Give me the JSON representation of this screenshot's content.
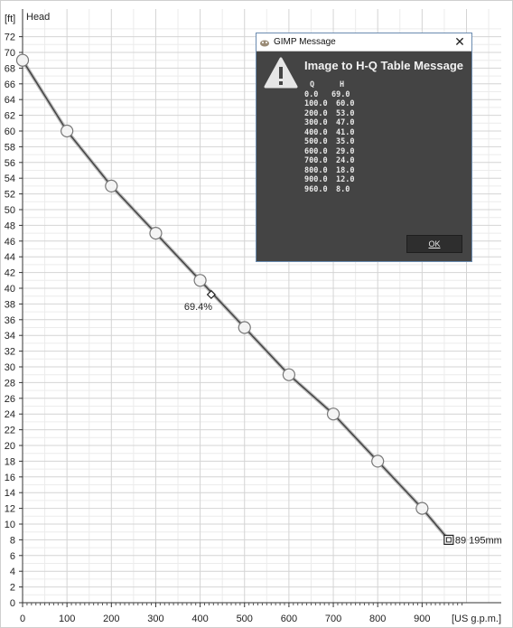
{
  "chart_data": {
    "type": "line",
    "ylabel": "Head",
    "yunit": "[ft]",
    "xunit": "[US g.p.m.]",
    "ylim": [
      0,
      74
    ],
    "xlim": [
      0,
      1000
    ],
    "y_ticks": [
      0,
      2,
      4,
      6,
      8,
      10,
      12,
      14,
      16,
      18,
      20,
      22,
      24,
      26,
      28,
      30,
      32,
      34,
      36,
      38,
      40,
      42,
      44,
      46,
      48,
      50,
      52,
      54,
      56,
      58,
      60,
      62,
      64,
      66,
      68,
      70,
      72
    ],
    "x_ticks": [
      0,
      100,
      200,
      300,
      400,
      500,
      600,
      700,
      800,
      900
    ],
    "grid": true,
    "curve_color": "#444444",
    "series": [
      {
        "x": [
          0,
          100,
          200,
          300,
          400,
          500,
          600,
          700,
          800,
          900,
          960
        ],
        "y": [
          69,
          60,
          53,
          47,
          41,
          35,
          29,
          24,
          18,
          12,
          8
        ]
      }
    ],
    "annotations": [
      {
        "text": "69.4%",
        "x": 425,
        "y": 39.2
      },
      {
        "text": "89 195mm",
        "x": 960,
        "y": 8
      }
    ]
  },
  "dialog": {
    "title": "GIMP Message",
    "heading": "Image to H-Q Table Message",
    "col_q": "Q",
    "col_h": "H",
    "rows": [
      {
        "q": "0.0",
        "h": "69.0"
      },
      {
        "q": "100.0",
        "h": "60.0"
      },
      {
        "q": "200.0",
        "h": "53.0"
      },
      {
        "q": "300.0",
        "h": "47.0"
      },
      {
        "q": "400.0",
        "h": "41.0"
      },
      {
        "q": "500.0",
        "h": "35.0"
      },
      {
        "q": "600.0",
        "h": "29.0"
      },
      {
        "q": "700.0",
        "h": "24.0"
      },
      {
        "q": "800.0",
        "h": "18.0"
      },
      {
        "q": "900.0",
        "h": "12.0"
      },
      {
        "q": "960.0",
        "h": "8.0"
      }
    ],
    "ok_label": "OK"
  },
  "icons": {
    "warning": "warning-triangle-icon",
    "close": "close-icon",
    "app": "gimp-icon"
  }
}
